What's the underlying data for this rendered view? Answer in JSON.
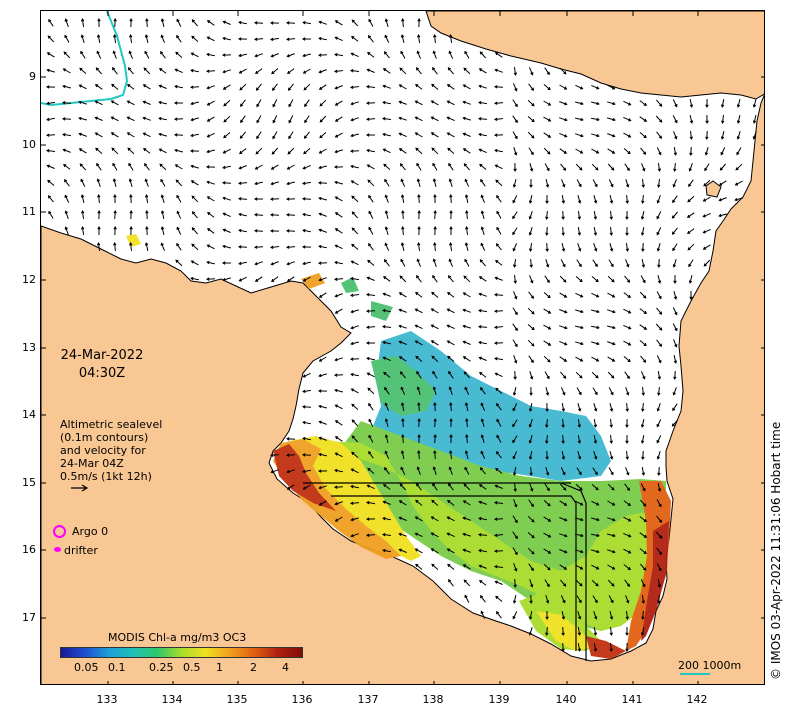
{
  "map": {
    "date": "24-Mar-2022",
    "time": "04:30Z",
    "legend_note_lines": [
      "Altimetric sealevel",
      "(0.1m contours)",
      "and velocity for",
      "24-Mar 04Z",
      "0.5m/s (1kt 12h)"
    ],
    "argo_label": "Argo 0",
    "drifter_label": "drifter",
    "colorbar_title": "MODIS Chl-a mg/m3 OC3",
    "colorbar_ticks": [
      "0.05",
      "0.1",
      "0.25",
      "0.5",
      "1",
      "2",
      "4"
    ],
    "lat_labels": [
      "9",
      "10",
      "11",
      "12",
      "13",
      "14",
      "15",
      "16",
      "17"
    ],
    "lon_labels": [
      "133",
      "134",
      "135",
      "136",
      "137",
      "138",
      "139",
      "140",
      "141",
      "142"
    ],
    "scale_label": "200  1000m",
    "credit": "© IMOS 03-Apr-2022 11:31:06 Hobart time",
    "colors": {
      "land": "#f9c794",
      "coast": "#000000",
      "argo": "#ff00ff",
      "contour_200m": "#20c8c0",
      "colormap": [
        "#1a1a9a",
        "#1f4fd0",
        "#1e9fd8",
        "#22c0b8",
        "#2ec86a",
        "#a8dc2a",
        "#f0e020",
        "#f0a020",
        "#e06010",
        "#b02010",
        "#801008"
      ]
    }
  }
}
